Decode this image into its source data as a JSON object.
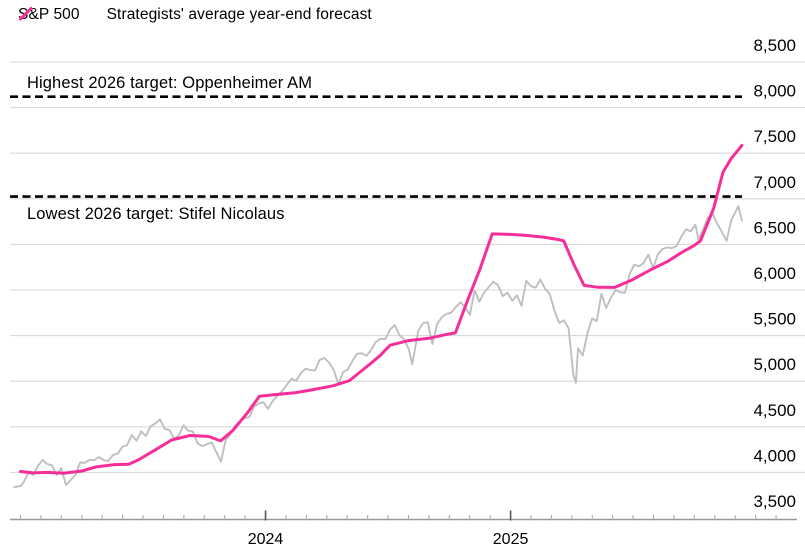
{
  "background_color": "#ffffff",
  "legend": {
    "items": [
      {
        "label": "S&P 500",
        "color": "#bfbfbf"
      },
      {
        "label": "Strategists' average year-end forecast",
        "color": "#f62e9a"
      }
    ]
  },
  "annotations": {
    "highest": {
      "label": "Highest 2026 target: Oppenheimer AM",
      "value": 8120
    },
    "lowest": {
      "label": "Lowest 2026 target: Stifel Nicolaus",
      "value": 7025
    }
  },
  "axes": {
    "x_year_labels": [
      {
        "month": 12,
        "label": "2024"
      },
      {
        "month": 24,
        "label": "2025"
      }
    ],
    "y_ticks": [
      {
        "v": 8500,
        "label": "8,500"
      },
      {
        "v": 8000,
        "label": "8,000"
      },
      {
        "v": 7500,
        "label": "7,500"
      },
      {
        "v": 7000,
        "label": "7,000"
      },
      {
        "v": 6500,
        "label": "6,500"
      },
      {
        "v": 6000,
        "label": "6,000"
      },
      {
        "v": 5500,
        "label": "5,500"
      },
      {
        "v": 5000,
        "label": "5,000"
      },
      {
        "v": 4500,
        "label": "4,500"
      },
      {
        "v": 4000,
        "label": "4,000"
      },
      {
        "v": 3500,
        "label": "3,500"
      }
    ]
  },
  "chart_data": {
    "type": "line",
    "title": "",
    "xlabel": "",
    "ylabel": "",
    "ylim": [
      3500,
      8500
    ],
    "y_tick_step": 500,
    "x_unit": "months_since_jan_2023",
    "xlim_months": [
      -0.3,
      35.4
    ],
    "grid": "horizontal",
    "legend_position": "top-left",
    "gridline_color": "#d9d9d9",
    "axis_color": "#999999",
    "reference_lines": [
      {
        "name": "highest-2026-target",
        "label": "Highest 2026 target: Oppenheimer AM",
        "value": 8120,
        "style": "dashed",
        "color": "#000000"
      },
      {
        "name": "lowest-2026-target",
        "label": "Lowest 2026 target: Stifel Nicolaus",
        "value": 7025,
        "style": "dashed",
        "color": "#000000"
      }
    ],
    "series": [
      {
        "name": "S&P 500",
        "color": "#bfbfbf",
        "width": 1.9,
        "points": [
          [
            -0.3,
            3839
          ],
          [
            0,
            3850
          ],
          [
            0.16,
            3895
          ],
          [
            0.39,
            3999
          ],
          [
            0.62,
            3973
          ],
          [
            0.85,
            4071
          ],
          [
            1.08,
            4136
          ],
          [
            1.31,
            4090
          ],
          [
            1.54,
            4079
          ],
          [
            1.77,
            3970
          ],
          [
            2,
            4046
          ],
          [
            2.23,
            3862
          ],
          [
            2.46,
            3917
          ],
          [
            2.69,
            3971
          ],
          [
            2.92,
            4109
          ],
          [
            3.15,
            4105
          ],
          [
            3.38,
            4138
          ],
          [
            3.61,
            4134
          ],
          [
            3.84,
            4169
          ],
          [
            4.07,
            4136
          ],
          [
            4.3,
            4124
          ],
          [
            4.53,
            4192
          ],
          [
            4.76,
            4205
          ],
          [
            4.99,
            4282
          ],
          [
            5.22,
            4299
          ],
          [
            5.45,
            4410
          ],
          [
            5.68,
            4348
          ],
          [
            5.91,
            4450
          ],
          [
            6.14,
            4399
          ],
          [
            6.37,
            4505
          ],
          [
            6.6,
            4536
          ],
          [
            6.83,
            4582
          ],
          [
            7.06,
            4478
          ],
          [
            7.29,
            4464
          ],
          [
            7.52,
            4370
          ],
          [
            7.75,
            4406
          ],
          [
            7.98,
            4516
          ],
          [
            8.21,
            4457
          ],
          [
            8.44,
            4450
          ],
          [
            8.67,
            4320
          ],
          [
            8.9,
            4288
          ],
          [
            9.13,
            4309
          ],
          [
            9.36,
            4328
          ],
          [
            9.59,
            4224
          ],
          [
            9.82,
            4117
          ],
          [
            10.05,
            4358
          ],
          [
            10.28,
            4415
          ],
          [
            10.51,
            4514
          ],
          [
            10.74,
            4559
          ],
          [
            10.97,
            4595
          ],
          [
            11.2,
            4604
          ],
          [
            11.43,
            4719
          ],
          [
            11.66,
            4755
          ],
          [
            11.89,
            4770
          ],
          [
            12.12,
            4697
          ],
          [
            12.35,
            4784
          ],
          [
            12.58,
            4840
          ],
          [
            12.81,
            4891
          ],
          [
            13.04,
            4959
          ],
          [
            13.27,
            5027
          ],
          [
            13.5,
            5006
          ],
          [
            13.73,
            5089
          ],
          [
            13.96,
            5137
          ],
          [
            14.19,
            5124
          ],
          [
            14.42,
            5117
          ],
          [
            14.65,
            5234
          ],
          [
            14.88,
            5254
          ],
          [
            15.11,
            5204
          ],
          [
            15.34,
            5123
          ],
          [
            15.57,
            4967
          ],
          [
            15.8,
            5100
          ],
          [
            16.03,
            5128
          ],
          [
            16.26,
            5223
          ],
          [
            16.49,
            5303
          ],
          [
            16.72,
            5305
          ],
          [
            16.95,
            5278
          ],
          [
            17.18,
            5347
          ],
          [
            17.41,
            5432
          ],
          [
            17.64,
            5465
          ],
          [
            17.87,
            5460
          ],
          [
            18.1,
            5567
          ],
          [
            18.33,
            5615
          ],
          [
            18.56,
            5505
          ],
          [
            18.79,
            5459
          ],
          [
            19.02,
            5347
          ],
          [
            19.18,
            5186
          ],
          [
            19.48,
            5554
          ],
          [
            19.71,
            5635
          ],
          [
            19.94,
            5648
          ],
          [
            20.17,
            5408
          ],
          [
            20.4,
            5626
          ],
          [
            20.63,
            5703
          ],
          [
            20.86,
            5738
          ],
          [
            21.09,
            5751
          ],
          [
            21.32,
            5815
          ],
          [
            21.55,
            5865
          ],
          [
            21.78,
            5808
          ],
          [
            22.01,
            5729
          ],
          [
            22.24,
            5996
          ],
          [
            22.47,
            5871
          ],
          [
            22.7,
            5969
          ],
          [
            22.93,
            6032
          ],
          [
            23.16,
            6090
          ],
          [
            23.39,
            6051
          ],
          [
            23.62,
            5931
          ],
          [
            23.85,
            5971
          ],
          [
            24.08,
            5882
          ],
          [
            24.31,
            5942
          ],
          [
            24.54,
            5827
          ],
          [
            24.77,
            6101
          ],
          [
            25,
            6041
          ],
          [
            25.23,
            6026
          ],
          [
            25.46,
            6115
          ],
          [
            25.69,
            6013
          ],
          [
            25.92,
            5955
          ],
          [
            26.15,
            5770
          ],
          [
            26.38,
            5639
          ],
          [
            26.61,
            5668
          ],
          [
            26.84,
            5581
          ],
          [
            27.07,
            5074
          ],
          [
            27.2,
            4983
          ],
          [
            27.3,
            5363
          ],
          [
            27.53,
            5283
          ],
          [
            27.76,
            5525
          ],
          [
            27.99,
            5687
          ],
          [
            28.22,
            5660
          ],
          [
            28.45,
            5958
          ],
          [
            28.68,
            5803
          ],
          [
            28.91,
            5912
          ],
          [
            29.14,
            6000
          ],
          [
            29.37,
            5977
          ],
          [
            29.6,
            5968
          ],
          [
            29.83,
            6173
          ],
          [
            30.06,
            6279
          ],
          [
            30.29,
            6260
          ],
          [
            30.52,
            6297
          ],
          [
            30.75,
            6389
          ],
          [
            30.98,
            6238
          ],
          [
            31.21,
            6389
          ],
          [
            31.44,
            6450
          ],
          [
            31.67,
            6467
          ],
          [
            31.9,
            6460
          ],
          [
            32.13,
            6481
          ],
          [
            32.36,
            6584
          ],
          [
            32.59,
            6664
          ],
          [
            32.82,
            6644
          ],
          [
            33.05,
            6716
          ],
          [
            33.2,
            6553
          ],
          [
            33.43,
            6664
          ],
          [
            33.66,
            6792
          ],
          [
            33.89,
            6840
          ],
          [
            34.12,
            6729
          ],
          [
            34.35,
            6635
          ],
          [
            34.58,
            6538
          ],
          [
            34.81,
            6770
          ],
          [
            35,
            6849
          ],
          [
            35.15,
            6920
          ],
          [
            35.33,
            6762
          ]
        ]
      },
      {
        "name": "Strategists' average year-end forecast",
        "color": "#f62e9a",
        "width": 3,
        "points": [
          [
            0,
            4010
          ],
          [
            0.6,
            3995
          ],
          [
            1.3,
            4000
          ],
          [
            2.1,
            3990
          ],
          [
            3,
            4015
          ],
          [
            3.7,
            4060
          ],
          [
            4.6,
            4085
          ],
          [
            5.3,
            4090
          ],
          [
            5.8,
            4140
          ],
          [
            6.7,
            4260
          ],
          [
            7.4,
            4355
          ],
          [
            8.3,
            4405
          ],
          [
            9.2,
            4395
          ],
          [
            9.8,
            4345
          ],
          [
            10.4,
            4460
          ],
          [
            11.1,
            4650
          ],
          [
            11.7,
            4835
          ],
          [
            12.6,
            4855
          ],
          [
            13.5,
            4875
          ],
          [
            14.4,
            4910
          ],
          [
            15.3,
            4950
          ],
          [
            16.1,
            5005
          ],
          [
            16.6,
            5095
          ],
          [
            17.1,
            5185
          ],
          [
            17.6,
            5280
          ],
          [
            18.1,
            5395
          ],
          [
            19,
            5445
          ],
          [
            20,
            5470
          ],
          [
            20.8,
            5510
          ],
          [
            21.3,
            5530
          ],
          [
            21.9,
            5890
          ],
          [
            22.5,
            6230
          ],
          [
            23.1,
            6615
          ],
          [
            23.8,
            6612
          ],
          [
            24.7,
            6600
          ],
          [
            25.6,
            6580
          ],
          [
            26.3,
            6555
          ],
          [
            26.6,
            6540
          ],
          [
            27.1,
            6280
          ],
          [
            27.6,
            6050
          ],
          [
            28.3,
            6030
          ],
          [
            29.1,
            6028
          ],
          [
            29.9,
            6105
          ],
          [
            30.8,
            6215
          ],
          [
            31.7,
            6315
          ],
          [
            32.4,
            6415
          ],
          [
            33,
            6490
          ],
          [
            33.3,
            6540
          ],
          [
            33.95,
            6900
          ],
          [
            34.4,
            7290
          ],
          [
            34.8,
            7440
          ],
          [
            35.33,
            7585
          ]
        ]
      }
    ]
  }
}
